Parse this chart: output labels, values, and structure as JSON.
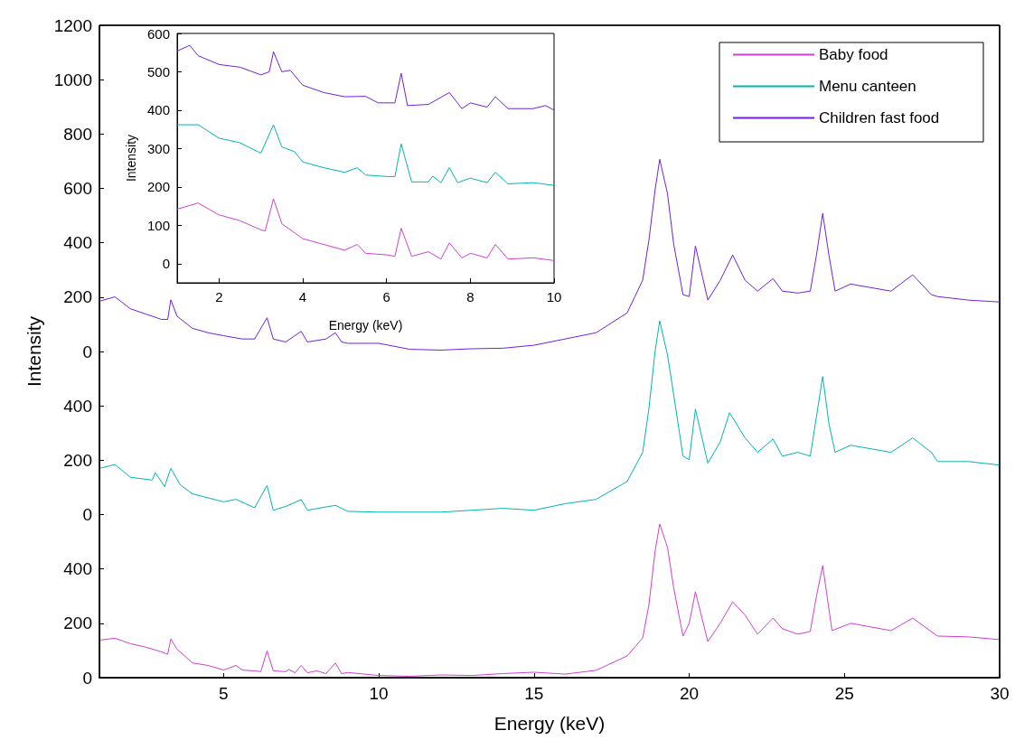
{
  "chart_data": [
    {
      "type": "line",
      "xlabel": "Energy (keV)",
      "ylabel": "Intensity",
      "xlim": [
        1,
        30
      ],
      "xticks": [
        5,
        10,
        15,
        20,
        25,
        30
      ],
      "ylim": [
        0,
        2400
      ],
      "yticks": [
        0,
        200,
        400
      ],
      "grid": false,
      "legend": "top right",
      "series": [
        {
          "name": "Baby food",
          "color": "#d040d0",
          "x": [
            1,
            1.5,
            2,
            2.5,
            3,
            3.2,
            3.3,
            3.5,
            4,
            4.5,
            5,
            5.4,
            5.6,
            6,
            6.2,
            6.4,
            6.6,
            7,
            7.1,
            7.3,
            7.5,
            7.7,
            8,
            8.3,
            8.6,
            8.8,
            9,
            10,
            11,
            12,
            13,
            14,
            15,
            16,
            17,
            18,
            18.5,
            18.7,
            18.9,
            19.05,
            19.3,
            19.5,
            19.8,
            20,
            20.2,
            20.6,
            21,
            21.4,
            21.8,
            22.2,
            22.7,
            23,
            23.5,
            23.9,
            24.1,
            24.3,
            24.6,
            25.2,
            26.5,
            27.2,
            28,
            29,
            30
          ],
          "values": [
            138,
            145,
            125,
            112,
            95,
            86,
            142,
            105,
            54,
            45,
            28,
            45,
            28,
            25,
            22,
            99,
            25,
            22,
            30,
            18,
            45,
            18,
            25,
            15,
            54,
            15,
            19,
            8,
            5,
            10,
            8,
            15,
            20,
            13,
            27,
            80,
            146,
            266,
            465,
            565,
            480,
            330,
            153,
            200,
            316,
            133,
            200,
            279,
            230,
            160,
            219,
            180,
            160,
            170,
            300,
            412,
            173,
            200,
            173,
            219,
            153,
            150,
            140
          ]
        }
      ]
    },
    {
      "type": "line",
      "xlim": [
        1,
        30
      ],
      "ylim": [
        -600,
        1800
      ],
      "yticks": [
        0,
        200,
        400
      ],
      "grid": false,
      "legend": "top right",
      "tick_labels": "y",
      "series": [
        {
          "name": "Menu canteen",
          "color": "#00b4b4",
          "x": [
            1,
            1.5,
            2,
            2.7,
            2.8,
            3.1,
            3.3,
            3.6,
            4,
            5,
            5.4,
            6,
            6.4,
            6.6,
            7,
            7.5,
            7.7,
            8.6,
            9,
            10,
            12,
            14,
            15,
            16,
            17,
            18,
            18.5,
            18.7,
            18.9,
            19.05,
            19.3,
            19.5,
            19.8,
            20,
            20.2,
            20.6,
            21,
            21.3,
            21.8,
            22.2,
            22.7,
            23,
            23.5,
            23.9,
            24.1,
            24.3,
            24.5,
            24.7,
            25.2,
            26.5,
            27.2,
            27.8,
            28,
            29,
            30
          ],
          "values": [
            170,
            184,
            137,
            127,
            154,
            103,
            170,
            110,
            76,
            47,
            56,
            25,
            107,
            16,
            30,
            55,
            16,
            34,
            12,
            9,
            9,
            23,
            16,
            40,
            56,
            122,
            229,
            388,
            600,
            713,
            587,
            441,
            215,
            202,
            388,
            189,
            268,
            375,
            282,
            229,
            278,
            215,
            229,
            215,
            361,
            508,
            335,
            229,
            255,
            229,
            282,
            229,
            195,
            195,
            182
          ]
        }
      ]
    },
    {
      "type": "line",
      "xlim": [
        1,
        30
      ],
      "ylim": [
        -1200,
        1200
      ],
      "yticks": [
        0,
        200,
        400,
        600,
        800,
        1000,
        1200
      ],
      "grid": false,
      "legend": "top right",
      "tick_labels": "y",
      "series": [
        {
          "name": "Children fast food",
          "color": "#7020e0",
          "x": [
            1,
            1.5,
            2,
            3,
            3.2,
            3.3,
            3.5,
            4,
            4.5,
            5,
            5.6,
            6,
            6.4,
            6.6,
            7,
            7.5,
            7.7,
            8.3,
            8.6,
            8.8,
            9,
            10,
            11,
            12,
            13,
            14,
            15,
            17,
            18,
            18.5,
            18.7,
            18.9,
            19.05,
            19.3,
            19.5,
            19.8,
            20,
            20.2,
            20.6,
            21,
            21.4,
            21.8,
            22.2,
            22.7,
            23,
            23.5,
            23.9,
            24.1,
            24.3,
            24.5,
            24.7,
            25.2,
            26.5,
            27.2,
            27.8,
            28,
            29,
            30
          ],
          "values": [
            185,
            201,
            157,
            118,
            118,
            190,
            130,
            85,
            69,
            58,
            46,
            46,
            124,
            46,
            35,
            74,
            35,
            46,
            69,
            35,
            30,
            30,
            8,
            5,
            10,
            12,
            23,
            69,
            142,
            262,
            408,
            594,
            707,
            581,
            395,
            209,
            202,
            388,
            189,
            262,
            355,
            262,
            222,
            268,
            222,
            215,
            222,
            355,
            508,
            355,
            222,
            248,
            222,
            282,
            209,
            202,
            189,
            182
          ]
        }
      ]
    },
    {
      "type": "line",
      "xlabel": "Energy (keV)",
      "ylabel": "Intensity",
      "xlim": [
        1,
        10
      ],
      "xticks": [
        2,
        4,
        6,
        8,
        10
      ],
      "ylim": [
        -50,
        600
      ],
      "yticks": [
        0,
        100,
        200,
        300,
        400,
        500,
        600
      ],
      "grid": false,
      "legend": false,
      "series": [
        {
          "color": "#d040d0",
          "x": [
            1,
            1.5,
            2,
            2.5,
            3,
            3.1,
            3.3,
            3.5,
            4,
            4.5,
            5,
            5.3,
            5.5,
            6,
            6.2,
            6.35,
            6.6,
            7,
            7.3,
            7.5,
            7.8,
            8,
            8.4,
            8.6,
            8.9,
            9.5,
            10
          ],
          "values": [
            142,
            158,
            127,
            112,
            88,
            85,
            169,
            104,
            65,
            50,
            35,
            50,
            27,
            23,
            19,
            92,
            19,
            31,
            12,
            54,
            15,
            27,
            15,
            50,
            12,
            15,
            8
          ]
        },
        {
          "color": "#00b4b4",
          "x": [
            1,
            1.5,
            2,
            2.5,
            3,
            3.3,
            3.5,
            3.8,
            4,
            4.5,
            5,
            5.3,
            5.5,
            6,
            6.2,
            6.35,
            6.6,
            7,
            7.1,
            7.3,
            7.5,
            7.7,
            8,
            8.4,
            8.6,
            8.9,
            9.5,
            10
          ],
          "values": [
            362,
            362,
            327,
            315,
            288,
            362,
            304,
            292,
            265,
            250,
            238,
            250,
            231,
            227,
            227,
            312,
            213,
            213,
            228,
            211,
            250,
            211,
            223,
            211,
            238,
            208,
            211,
            204
          ]
        },
        {
          "color": "#7020e0",
          "x": [
            1,
            1.3,
            1.5,
            2,
            2.5,
            3,
            3.2,
            3.3,
            3.5,
            3.7,
            4,
            4.5,
            5,
            5.5,
            5.8,
            6.2,
            6.35,
            6.5,
            7,
            7.5,
            7.8,
            8,
            8.4,
            8.6,
            8.9,
            9.5,
            9.8,
            10
          ],
          "values": [
            554,
            569,
            542,
            519,
            512,
            492,
            500,
            552,
            500,
            504,
            465,
            446,
            435,
            436,
            419,
            419,
            496,
            412,
            415,
            446,
            404,
            419,
            408,
            435,
            404,
            404,
            412,
            400
          ]
        }
      ]
    }
  ]
}
